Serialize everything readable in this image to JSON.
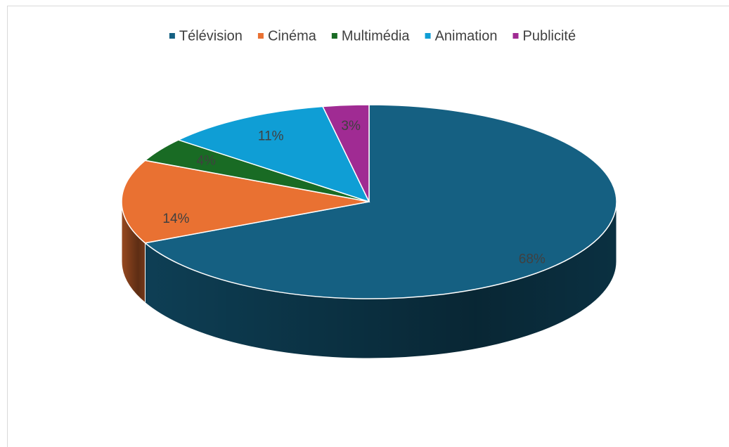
{
  "chart_data": {
    "type": "pie",
    "categories": [
      "Télévision",
      "Cinéma",
      "Multimédia",
      "Animation",
      "Publicité"
    ],
    "values": [
      68,
      14,
      4,
      11,
      3
    ],
    "value_labels": [
      "68%",
      "14%",
      "4%",
      "11%",
      "3%"
    ],
    "colors": [
      "#156082",
      "#e97132",
      "#196b24",
      "#0f9ed5",
      "#a02b93"
    ],
    "legend": "top"
  }
}
